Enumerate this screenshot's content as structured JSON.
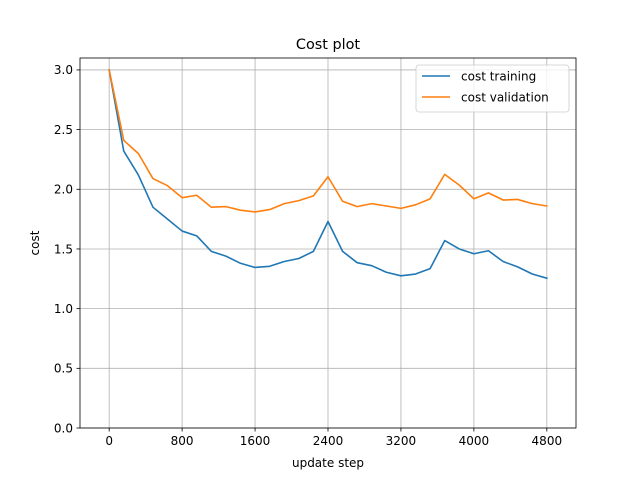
{
  "chart_data": {
    "type": "line",
    "title": "Cost plot",
    "xlabel": "update step",
    "ylabel": "cost",
    "xlim": [
      -320,
      5120
    ],
    "ylim": [
      0,
      3.1
    ],
    "xticks": [
      0,
      800,
      1600,
      2400,
      3200,
      4000,
      4800
    ],
    "xtick_labels": [
      "0",
      "800",
      "1600",
      "2400",
      "3200",
      "4000",
      "4800"
    ],
    "yticks": [
      0.0,
      0.5,
      1.0,
      1.5,
      2.0,
      2.5,
      3.0
    ],
    "ytick_labels": [
      "0.0",
      "0.5",
      "1.0",
      "1.5",
      "2.0",
      "2.5",
      "3.0"
    ],
    "grid": true,
    "legend": "top-right",
    "x": [
      0,
      160,
      320,
      480,
      640,
      800,
      960,
      1120,
      1280,
      1440,
      1600,
      1760,
      1920,
      2080,
      2240,
      2400,
      2560,
      2720,
      2880,
      3040,
      3200,
      3360,
      3520,
      3680,
      3840,
      4000,
      4160,
      4320,
      4480,
      4640,
      4800
    ],
    "series": [
      {
        "name": "cost training",
        "color": "#1f77b4",
        "values": [
          3.0,
          2.32,
          2.12,
          1.85,
          1.75,
          1.65,
          1.61,
          1.48,
          1.44,
          1.38,
          1.345,
          1.355,
          1.395,
          1.42,
          1.48,
          1.73,
          1.48,
          1.385,
          1.36,
          1.305,
          1.275,
          1.29,
          1.335,
          1.57,
          1.5,
          1.46,
          1.485,
          1.395,
          1.35,
          1.29,
          1.255
        ]
      },
      {
        "name": "cost validation",
        "color": "#ff7f0e",
        "values": [
          3.0,
          2.41,
          2.3,
          2.09,
          2.03,
          1.93,
          1.95,
          1.85,
          1.855,
          1.825,
          1.81,
          1.83,
          1.88,
          1.905,
          1.945,
          2.105,
          1.9,
          1.855,
          1.88,
          1.86,
          1.84,
          1.87,
          1.92,
          2.125,
          2.035,
          1.92,
          1.97,
          1.91,
          1.915,
          1.88,
          1.86
        ]
      }
    ]
  }
}
